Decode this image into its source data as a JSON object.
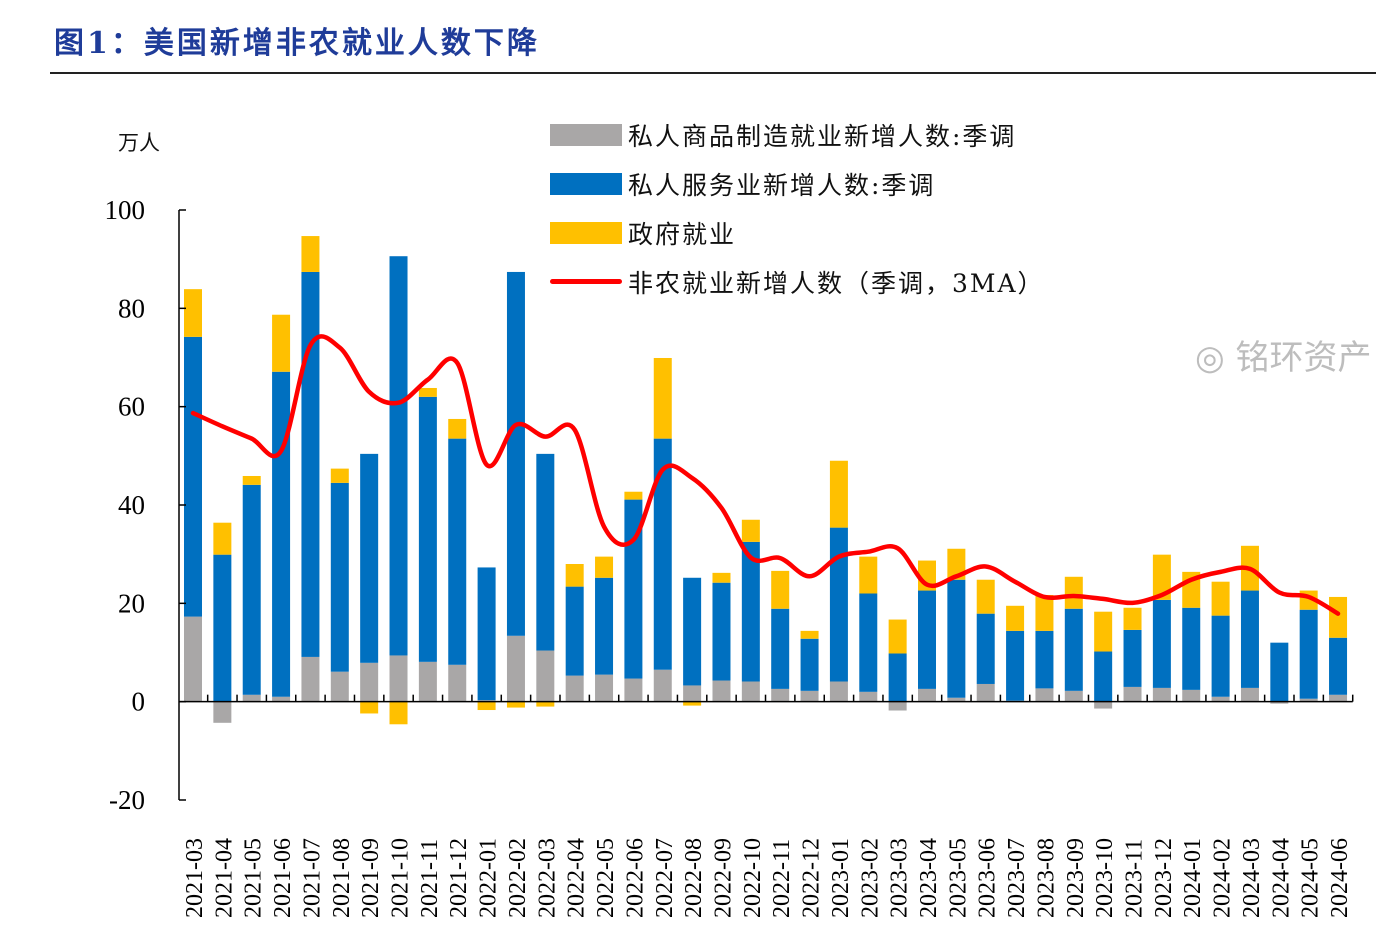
{
  "title": "图1：美国新增非农就业人数下降",
  "watermark": "铭环资产",
  "colors": {
    "manufacturing": "#a9a7a7",
    "services": "#0070c0",
    "government": "#ffc000",
    "line": "#ff0000",
    "title": "#1f3c99"
  },
  "chart_data": {
    "type": "bar",
    "stacked": true,
    "ylabel": "万人",
    "ylim": [
      -20,
      100
    ],
    "yticks": [
      -20,
      0,
      20,
      40,
      60,
      80,
      100
    ],
    "legend_position": "top-right",
    "grid": false,
    "categories": [
      "2021-03",
      "2021-04",
      "2021-05",
      "2021-06",
      "2021-07",
      "2021-08",
      "2021-09",
      "2021-10",
      "2021-11",
      "2021-12",
      "2022-01",
      "2022-02",
      "2022-03",
      "2022-04",
      "2022-05",
      "2022-06",
      "2022-07",
      "2022-08",
      "2022-09",
      "2022-10",
      "2022-11",
      "2022-12",
      "2023-01",
      "2023-02",
      "2023-03",
      "2023-04",
      "2023-05",
      "2023-06",
      "2023-07",
      "2023-08",
      "2023-09",
      "2023-10",
      "2023-11",
      "2023-12",
      "2024-01",
      "2024-02",
      "2024-03",
      "2024-04",
      "2024-05",
      "2024-06"
    ],
    "series": [
      {
        "name": "私人商品制造就业新增人数:季调",
        "kind": "bar",
        "color": "#a9a7a7",
        "values": [
          17.3,
          -4.3,
          1.4,
          1.0,
          9.1,
          6.1,
          7.9,
          9.4,
          8.1,
          7.5,
          0.3,
          13.4,
          10.4,
          5.3,
          5.5,
          4.7,
          6.5,
          3.3,
          4.3,
          4.1,
          2.6,
          2.2,
          4.1,
          2.0,
          -1.8,
          2.6,
          0.8,
          3.6,
          0.2,
          2.7,
          2.2,
          -1.4,
          3.0,
          2.8,
          2.4,
          1.0,
          2.8,
          -0.4,
          0.6,
          1.4
        ]
      },
      {
        "name": "私人服务业新增人数:季调",
        "kind": "bar",
        "color": "#0070c0",
        "values": [
          56.9,
          29.9,
          42.7,
          66.1,
          78.3,
          38.4,
          42.5,
          81.2,
          53.9,
          46.0,
          27.0,
          74.0,
          40.0,
          18.1,
          19.7,
          36.4,
          47.0,
          21.9,
          19.9,
          28.4,
          16.3,
          10.6,
          31.3,
          20.0,
          9.8,
          20.0,
          24.0,
          14.3,
          14.2,
          11.7,
          16.7,
          10.2,
          11.6,
          17.9,
          16.7,
          16.5,
          19.8,
          12.0,
          18.1,
          11.6
        ]
      },
      {
        "name": "政府就业",
        "kind": "bar",
        "color": "#ffc000",
        "values": [
          9.7,
          6.5,
          1.8,
          11.6,
          7.3,
          2.9,
          -2.4,
          -4.6,
          1.8,
          4.0,
          -1.7,
          -1.2,
          -1.0,
          4.6,
          4.3,
          1.6,
          16.4,
          -0.8,
          2.0,
          4.5,
          7.7,
          1.6,
          13.6,
          7.5,
          6.9,
          6.1,
          6.3,
          6.9,
          5.1,
          7.3,
          6.5,
          8.1,
          4.5,
          9.2,
          7.3,
          6.9,
          9.1,
          0,
          3.9,
          8.3
        ]
      },
      {
        "name": "非农就业新增人数（季调，3MA）",
        "kind": "line",
        "color": "#ff0000",
        "values": [
          58.7,
          56.0,
          53.5,
          51.0,
          72.5,
          72.0,
          63.0,
          60.8,
          65.5,
          68.9,
          48.2,
          56.3,
          53.9,
          55.3,
          35.6,
          32.9,
          47.2,
          45.5,
          39.4,
          29.3,
          29.2,
          25.5,
          29.5,
          30.5,
          31.2,
          23.8,
          25.5,
          27.5,
          24.4,
          21.3,
          21.5,
          20.9,
          20.1,
          21.7,
          24.8,
          26.4,
          27.0,
          22.2,
          21.3,
          17.9
        ]
      }
    ]
  }
}
